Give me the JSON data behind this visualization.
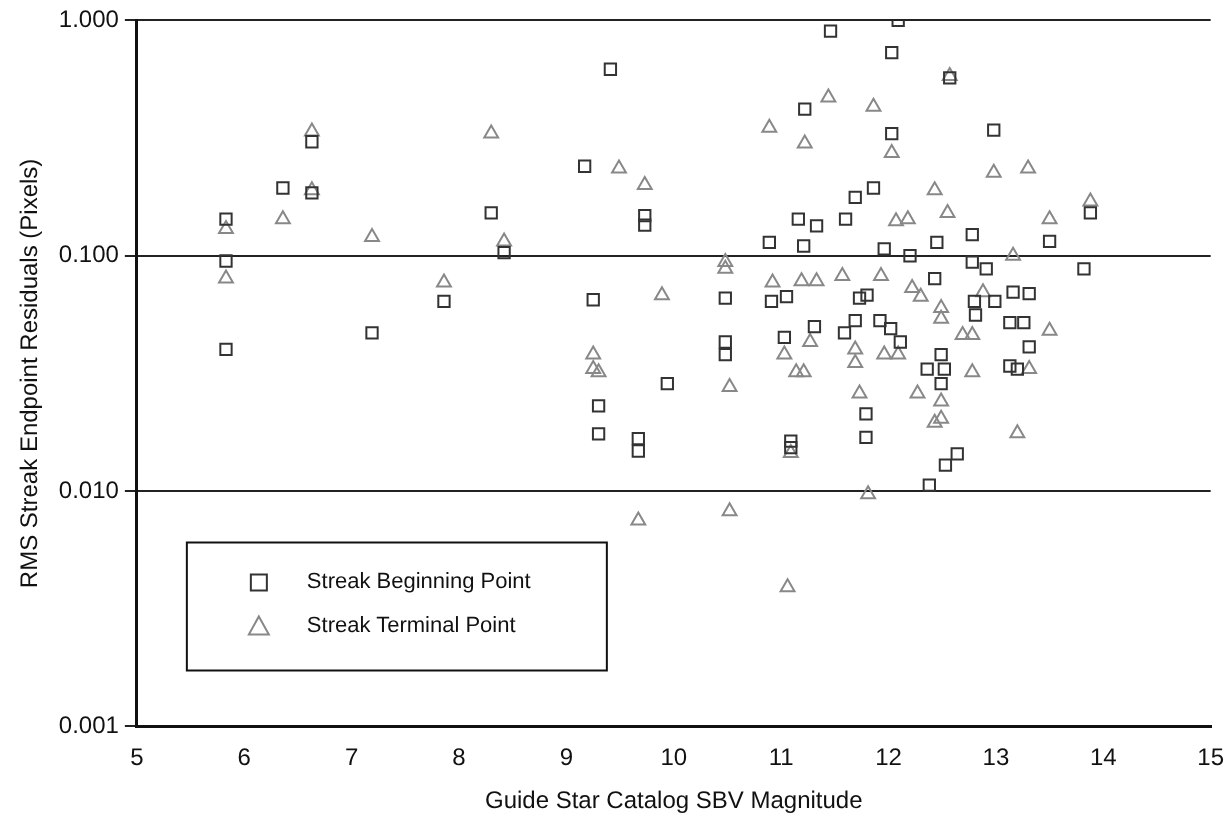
{
  "chart_data": {
    "type": "scatter",
    "xlabel": "Guide Star Catalog SBV Magnitude",
    "ylabel": "RMS Streak Endpoint Residuals (Pixels)",
    "xlim": [
      5,
      15
    ],
    "xticks": [
      5,
      6,
      7,
      8,
      9,
      10,
      11,
      12,
      13,
      14,
      15
    ],
    "ylim": [
      0.001,
      1
    ],
    "yticks": [
      {
        "value": 0.001,
        "label": "0.001"
      },
      {
        "value": 0.01,
        "label": "0.010"
      },
      {
        "value": 0.1,
        "label": "0.100"
      },
      {
        "value": 1,
        "label": "1.000"
      }
    ],
    "log": "y",
    "grid": "y",
    "legend": "bottom left",
    "series": [
      {
        "name": "Streak Beginning Point",
        "color": "#333333",
        "marker": "square",
        "x": [
          5.83,
          5.83,
          5.83,
          6.36,
          6.63,
          6.63,
          7.19,
          7.86,
          8.3,
          8.42,
          9.17,
          9.41,
          9.25,
          9.73,
          9.73,
          9.3,
          9.3,
          9.67,
          9.67,
          9.94,
          11.09,
          11.09,
          11.79,
          11.79,
          12.38,
          12.53,
          12.64,
          12.49,
          13.2,
          11.46,
          12.09,
          12.03,
          12.57,
          11.22,
          12.03,
          12.98,
          13.88,
          11.69,
          11.86,
          11.16,
          11.33,
          11.6,
          10.89,
          11.21,
          11.96,
          12.78,
          13.5,
          12.45,
          10.48,
          10.48,
          10.48,
          10.91,
          11.05,
          11.03,
          11.31,
          11.59,
          11.69,
          11.73,
          11.8,
          11.92,
          12.02,
          12.11,
          12.36,
          12.52,
          12.8,
          12.81,
          12.99,
          13.13,
          13.26,
          13.31,
          13.13,
          13.16,
          13.31,
          13.82,
          12.91,
          12.78,
          12.43,
          12.49,
          12.2
        ],
        "values": [
          0.143,
          0.095,
          0.04,
          0.194,
          0.305,
          0.185,
          0.047,
          0.064,
          0.152,
          0.103,
          0.24,
          0.62,
          0.065,
          0.148,
          0.135,
          0.023,
          0.0175,
          0.0167,
          0.0148,
          0.0286,
          0.0163,
          0.0153,
          0.0169,
          0.0213,
          0.0106,
          0.0129,
          0.0144,
          0.0286,
          0.033,
          0.9,
          1.0,
          0.73,
          0.57,
          0.42,
          0.33,
          0.342,
          0.152,
          0.177,
          0.194,
          0.143,
          0.134,
          0.143,
          0.114,
          0.11,
          0.107,
          0.123,
          0.115,
          0.114,
          0.066,
          0.043,
          0.038,
          0.064,
          0.067,
          0.045,
          0.05,
          0.047,
          0.053,
          0.066,
          0.068,
          0.053,
          0.049,
          0.043,
          0.033,
          0.033,
          0.064,
          0.056,
          0.064,
          0.052,
          0.052,
          0.041,
          0.034,
          0.07,
          0.069,
          0.088,
          0.088,
          0.094,
          0.08,
          0.038,
          0.1
        ]
      },
      {
        "name": "Streak Terminal Point",
        "color": "#888888",
        "marker": "triangle",
        "x": [
          5.83,
          5.83,
          6.36,
          6.63,
          6.63,
          7.19,
          7.86,
          8.3,
          8.42,
          9.25,
          9.25,
          9.49,
          9.73,
          9.89,
          9.67,
          10.52,
          11.06,
          11.81,
          10.52,
          11.09,
          12.27,
          12.49,
          12.49,
          13.2,
          11.21,
          9.3,
          11.44,
          11.86,
          10.89,
          11.22,
          12.03,
          12.57,
          12.98,
          13.3,
          12.43,
          13.88,
          13.5,
          12.18,
          12.07,
          12.55,
          10.48,
          13.16,
          10.48,
          10.92,
          11.19,
          11.33,
          11.27,
          11.03,
          11.14,
          11.69,
          11.69,
          11.73,
          11.57,
          11.93,
          12.22,
          11.96,
          12.09,
          12.43,
          12.78,
          12.78,
          13.5,
          13.31,
          12.49,
          12.49,
          12.69,
          12.3,
          12.88
        ],
        "values": [
          0.08,
          0.13,
          0.143,
          0.337,
          0.19,
          0.12,
          0.077,
          0.331,
          0.115,
          0.038,
          0.033,
          0.235,
          0.2,
          0.068,
          0.0075,
          0.0082,
          0.0039,
          0.0097,
          0.0277,
          0.0145,
          0.026,
          0.024,
          0.0203,
          0.0176,
          0.032,
          0.032,
          0.47,
          0.43,
          0.35,
          0.3,
          0.273,
          0.58,
          0.225,
          0.235,
          0.19,
          0.17,
          0.143,
          0.143,
          0.14,
          0.152,
          0.094,
          0.1,
          0.088,
          0.077,
          0.078,
          0.078,
          0.043,
          0.038,
          0.032,
          0.04,
          0.035,
          0.026,
          0.082,
          0.082,
          0.073,
          0.038,
          0.038,
          0.0195,
          0.046,
          0.032,
          0.048,
          0.033,
          0.06,
          0.054,
          0.046,
          0.067,
          0.07
        ]
      }
    ]
  }
}
